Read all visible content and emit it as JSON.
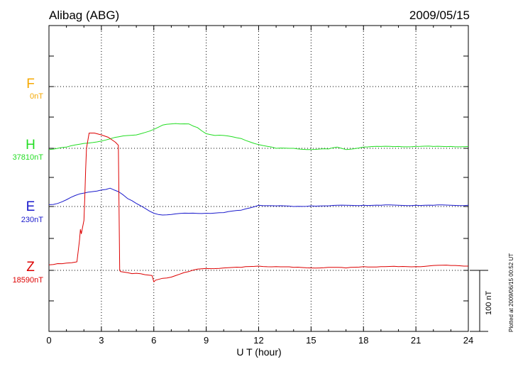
{
  "chart_data": {
    "type": "line",
    "title": "Alibag (ABG)",
    "date": "2009/05/15",
    "xlabel": "U T (hour)",
    "xlim": [
      0,
      24
    ],
    "x_ticks": [
      "0",
      "3",
      "6",
      "9",
      "12",
      "15",
      "18",
      "21",
      "24"
    ],
    "scale_label": "100 nT",
    "plotted_note": "Plotted at 2009/06/15 00:52 UT",
    "grid": true,
    "series": [
      {
        "name": "F",
        "baseline": "0nT",
        "color": "#f5a800",
        "x": [],
        "y": []
      },
      {
        "name": "H",
        "baseline": "37810nT",
        "color": "#22dd22",
        "x": [
          0,
          1,
          2,
          3,
          4,
          5,
          6,
          6.5,
          7,
          7.5,
          8,
          8.5,
          9,
          9.5,
          10,
          11,
          12,
          13,
          14,
          15,
          16,
          16.5,
          17,
          18,
          19,
          20,
          21,
          22,
          23,
          24
        ],
        "y": [
          -2,
          2,
          8,
          12,
          19,
          22,
          31,
          38,
          40,
          40,
          40,
          34,
          24,
          21,
          21,
          16,
          6,
          0,
          0,
          -2,
          -1,
          2,
          -2,
          2,
          3,
          3,
          3,
          3,
          3,
          3
        ]
      },
      {
        "name": "E",
        "baseline": "230nT",
        "color": "#1a1acc",
        "x": [
          0,
          0.5,
          1,
          1.5,
          2,
          3,
          3.5,
          4,
          4.5,
          5,
          5.5,
          6,
          6.5,
          7,
          8,
          9,
          10,
          11,
          12,
          13,
          14,
          15,
          16,
          17,
          18,
          19,
          20,
          21,
          22,
          23,
          24
        ],
        "y": [
          3,
          5,
          11,
          18,
          22,
          27,
          30,
          24,
          13,
          5,
          -3,
          -11,
          -14,
          -13,
          -11,
          -11,
          -10,
          -6,
          2,
          1,
          0,
          1,
          1,
          2,
          2,
          2,
          2,
          2,
          2,
          2,
          2
        ]
      },
      {
        "name": "Z",
        "baseline": "18590nT",
        "color": "#dd0000",
        "x": [
          0,
          0.5,
          1,
          1.6,
          1.75,
          1.8,
          1.85,
          2.0,
          2.05,
          2.1,
          2.15,
          2.3,
          2.6,
          3.0,
          3.4,
          3.8,
          3.97,
          4.05,
          4.1,
          4.5,
          5.0,
          5.5,
          5.9,
          6.0,
          6.1,
          6.5,
          7.0,
          7.5,
          8.0,
          8.5,
          9,
          10,
          11,
          12,
          13,
          14,
          15,
          16,
          17,
          18,
          19,
          20,
          21,
          22,
          23,
          24
        ],
        "y": [
          9,
          11,
          12,
          14,
          50,
          67,
          60,
          82,
          120,
          165,
          200,
          225,
          225,
          222,
          218,
          210,
          205,
          0,
          -3,
          -3,
          -3,
          -6,
          -9,
          -19,
          -16,
          -13,
          -11,
          -6,
          -2,
          2,
          3,
          4,
          5,
          7,
          6,
          5,
          4,
          5,
          4,
          6,
          6,
          6,
          6,
          8,
          8,
          7
        ]
      }
    ]
  }
}
